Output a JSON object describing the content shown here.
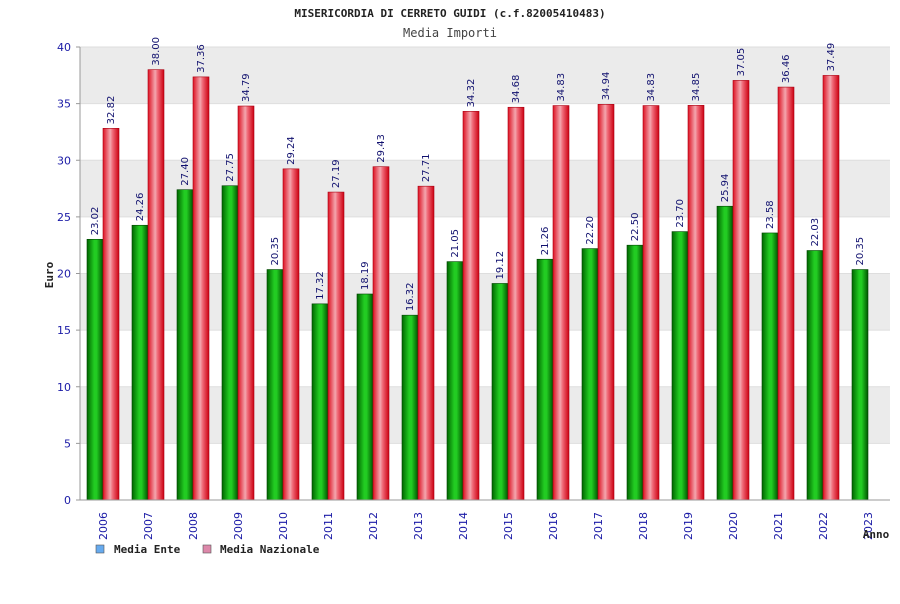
{
  "chart_data": {
    "type": "bar",
    "title": "MISERICORDIA DI CERRETO GUIDI (c.f.82005410483)",
    "subtitle": "Media Importi",
    "xlabel": "Anno",
    "ylabel": "Euro",
    "ylim": [
      0,
      40
    ],
    "yticks": [
      "0",
      "5",
      "10",
      "15",
      "20",
      "25",
      "30",
      "35",
      "40"
    ],
    "grid": true,
    "legend_position": "bottom-left",
    "categories": [
      "2006",
      "2007",
      "2008",
      "2009",
      "2010",
      "2011",
      "2012",
      "2013",
      "2014",
      "2015",
      "2016",
      "2017",
      "2018",
      "2019",
      "2020",
      "2021",
      "2022",
      "2023"
    ],
    "series": [
      {
        "name": "Media Ente",
        "color": "#11aa11",
        "legend_color": "#66aaee",
        "values": [
          23.02,
          24.26,
          27.4,
          27.75,
          20.35,
          17.32,
          18.19,
          16.32,
          21.05,
          19.12,
          21.26,
          22.2,
          22.5,
          23.7,
          25.94,
          23.58,
          22.03,
          20.35
        ],
        "labels": [
          "23.02",
          "24.26",
          "27.40",
          "27.75",
          "20.35",
          "17.32",
          "18.19",
          "16.32",
          "21.05",
          "19.12",
          "21.26",
          "22.20",
          "22.50",
          "23.70",
          "25.94",
          "23.58",
          "22.03",
          "20.35"
        ]
      },
      {
        "name": "Media Nazionale",
        "color": "#ee2233",
        "legend_color": "#dd88aa",
        "values": [
          32.82,
          38.0,
          37.36,
          34.79,
          29.24,
          27.19,
          29.43,
          27.71,
          34.32,
          34.68,
          34.83,
          34.94,
          34.83,
          34.85,
          37.05,
          36.46,
          37.49,
          null
        ],
        "labels": [
          "32.82",
          "38.00",
          "37.36",
          "34.79",
          "29.24",
          "27.19",
          "29.43",
          "27.71",
          "34.32",
          "34.68",
          "34.83",
          "34.94",
          "34.83",
          "34.85",
          "37.05",
          "36.46",
          "37.49",
          ""
        ]
      }
    ]
  }
}
